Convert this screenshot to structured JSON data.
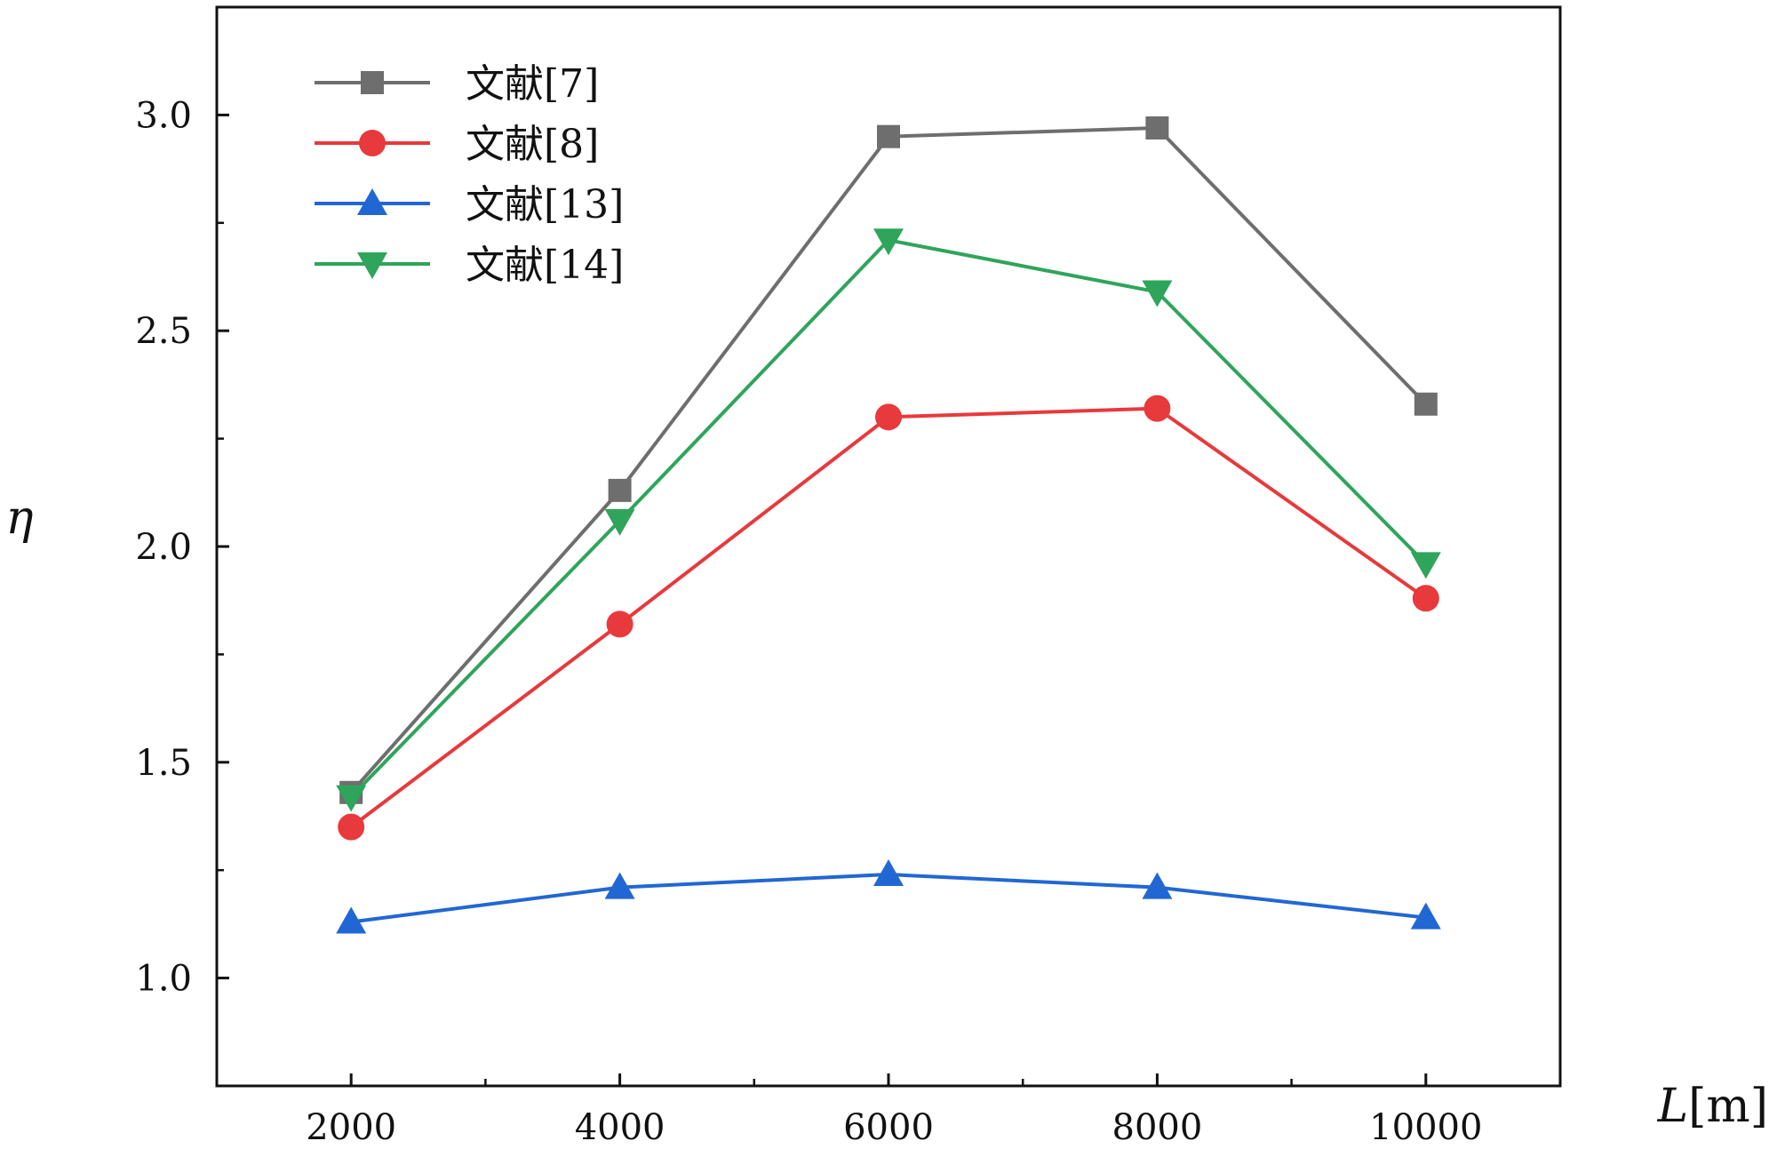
{
  "chart_data": {
    "type": "line",
    "title": "",
    "xlabel": "L",
    "xlabel_unit": "[m]",
    "ylabel": "η",
    "x": [
      2000,
      4000,
      6000,
      8000,
      10000
    ],
    "xlim": [
      1000,
      11000
    ],
    "ylim": [
      0.75,
      3.25
    ],
    "xticks": [
      2000,
      4000,
      6000,
      8000,
      10000
    ],
    "xtick_labels": [
      "2000",
      "4000",
      "6000",
      "8000",
      "10000"
    ],
    "xminor": [
      3000,
      5000,
      7000,
      9000
    ],
    "yticks": [
      1.0,
      1.5,
      2.0,
      2.5,
      3.0
    ],
    "ytick_labels": [
      "1.0",
      "1.5",
      "2.0",
      "2.5",
      "3.0"
    ],
    "yminor": [
      1.25,
      1.75,
      2.25,
      2.75
    ],
    "grid": false,
    "legend_position": "top-left",
    "series": [
      {
        "name": "文献[7]",
        "color": "#6e6e6e",
        "marker": "square",
        "values": [
          1.43,
          2.13,
          2.95,
          2.97,
          2.33
        ]
      },
      {
        "name": "文献[8]",
        "color": "#e8393c",
        "marker": "circle",
        "values": [
          1.35,
          1.82,
          2.3,
          2.32,
          1.88
        ]
      },
      {
        "name": "文献[13]",
        "color": "#2167d4",
        "marker": "triangle-up",
        "values": [
          1.13,
          1.21,
          1.24,
          1.21,
          1.14
        ]
      },
      {
        "name": "文献[14]",
        "color": "#2ea55a",
        "marker": "triangle-down",
        "values": [
          1.42,
          2.06,
          2.71,
          2.59,
          1.96
        ]
      }
    ]
  }
}
